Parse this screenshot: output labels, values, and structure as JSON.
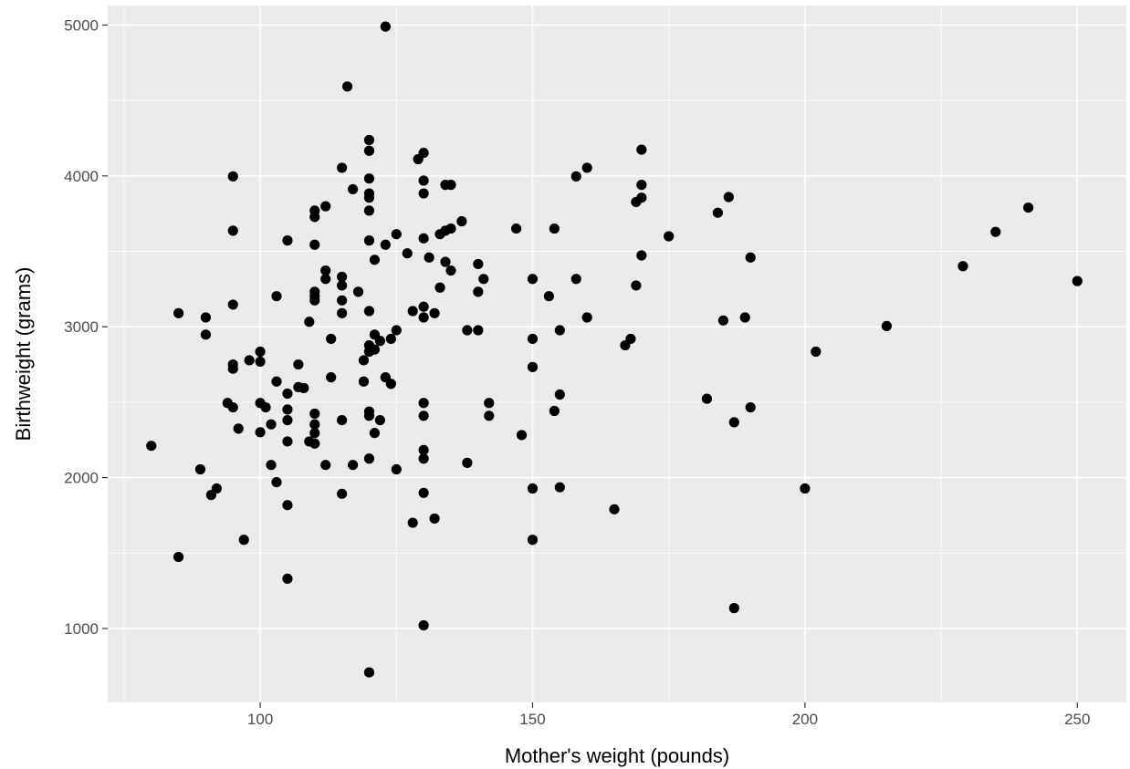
{
  "chart_data": {
    "type": "scatter",
    "title": "",
    "xlabel": "Mother's weight (pounds)",
    "ylabel": "Birthweight (grams)",
    "xlim": [
      72,
      259
    ],
    "ylim": [
      510,
      5130
    ],
    "x_ticks": [
      100,
      150,
      200,
      250
    ],
    "y_ticks": [
      1000,
      2000,
      3000,
      4000,
      5000
    ],
    "x_tick_labels": [
      "100",
      "150",
      "200",
      "250"
    ],
    "y_tick_labels": [
      "1000",
      "2000",
      "3000",
      "4000",
      "5000"
    ],
    "grid": true,
    "legend": "none",
    "colors": {
      "panel": "#ebebeb",
      "grid_major": "#ffffff",
      "point": "#000000",
      "tick_text": "#4d4d4d",
      "tick_mark": "#333333"
    },
    "points": [
      {
        "x": 123,
        "y": 4990
      },
      {
        "x": 116,
        "y": 4593
      },
      {
        "x": 120,
        "y": 4238
      },
      {
        "x": 120,
        "y": 4167
      },
      {
        "x": 129,
        "y": 4111
      },
      {
        "x": 130,
        "y": 4153
      },
      {
        "x": 170,
        "y": 4174
      },
      {
        "x": 115,
        "y": 4054
      },
      {
        "x": 160,
        "y": 4054
      },
      {
        "x": 95,
        "y": 3997
      },
      {
        "x": 158,
        "y": 3997
      },
      {
        "x": 120,
        "y": 3983
      },
      {
        "x": 130,
        "y": 3969
      },
      {
        "x": 170,
        "y": 3941
      },
      {
        "x": 134,
        "y": 3941
      },
      {
        "x": 135,
        "y": 3941
      },
      {
        "x": 117,
        "y": 3912
      },
      {
        "x": 120,
        "y": 3884
      },
      {
        "x": 130,
        "y": 3884
      },
      {
        "x": 120,
        "y": 3856
      },
      {
        "x": 170,
        "y": 3856
      },
      {
        "x": 186,
        "y": 3860
      },
      {
        "x": 169,
        "y": 3827
      },
      {
        "x": 112,
        "y": 3799
      },
      {
        "x": 241,
        "y": 3790
      },
      {
        "x": 110,
        "y": 3770
      },
      {
        "x": 120,
        "y": 3770
      },
      {
        "x": 184,
        "y": 3756
      },
      {
        "x": 110,
        "y": 3728
      },
      {
        "x": 137,
        "y": 3699
      },
      {
        "x": 95,
        "y": 3637
      },
      {
        "x": 147,
        "y": 3651
      },
      {
        "x": 154,
        "y": 3651
      },
      {
        "x": 135,
        "y": 3651
      },
      {
        "x": 134,
        "y": 3637
      },
      {
        "x": 133,
        "y": 3614
      },
      {
        "x": 235,
        "y": 3629
      },
      {
        "x": 175,
        "y": 3600
      },
      {
        "x": 125,
        "y": 3614
      },
      {
        "x": 105,
        "y": 3572
      },
      {
        "x": 120,
        "y": 3572
      },
      {
        "x": 130,
        "y": 3586
      },
      {
        "x": 110,
        "y": 3544
      },
      {
        "x": 123,
        "y": 3544
      },
      {
        "x": 127,
        "y": 3487
      },
      {
        "x": 170,
        "y": 3473
      },
      {
        "x": 131,
        "y": 3459
      },
      {
        "x": 121,
        "y": 3444
      },
      {
        "x": 190,
        "y": 3459
      },
      {
        "x": 134,
        "y": 3430
      },
      {
        "x": 140,
        "y": 3416
      },
      {
        "x": 229,
        "y": 3402
      },
      {
        "x": 112,
        "y": 3373
      },
      {
        "x": 135,
        "y": 3373
      },
      {
        "x": 115,
        "y": 3331
      },
      {
        "x": 112,
        "y": 3317
      },
      {
        "x": 150,
        "y": 3317
      },
      {
        "x": 158,
        "y": 3317
      },
      {
        "x": 141,
        "y": 3317
      },
      {
        "x": 250,
        "y": 3303
      },
      {
        "x": 115,
        "y": 3274
      },
      {
        "x": 169,
        "y": 3274
      },
      {
        "x": 133,
        "y": 3260
      },
      {
        "x": 110,
        "y": 3232
      },
      {
        "x": 118,
        "y": 3232
      },
      {
        "x": 140,
        "y": 3232
      },
      {
        "x": 110,
        "y": 3203
      },
      {
        "x": 103,
        "y": 3203
      },
      {
        "x": 153,
        "y": 3203
      },
      {
        "x": 110,
        "y": 3175
      },
      {
        "x": 115,
        "y": 3175
      },
      {
        "x": 95,
        "y": 3147
      },
      {
        "x": 130,
        "y": 3133
      },
      {
        "x": 128,
        "y": 3104
      },
      {
        "x": 120,
        "y": 3104
      },
      {
        "x": 132,
        "y": 3090
      },
      {
        "x": 115,
        "y": 3090
      },
      {
        "x": 85,
        "y": 3090
      },
      {
        "x": 90,
        "y": 3062
      },
      {
        "x": 130,
        "y": 3062
      },
      {
        "x": 160,
        "y": 3062
      },
      {
        "x": 189,
        "y": 3062
      },
      {
        "x": 185,
        "y": 3042
      },
      {
        "x": 109,
        "y": 3033
      },
      {
        "x": 215,
        "y": 3005
      },
      {
        "x": 138,
        "y": 2977
      },
      {
        "x": 140,
        "y": 2977
      },
      {
        "x": 155,
        "y": 2977
      },
      {
        "x": 125,
        "y": 2977
      },
      {
        "x": 121,
        "y": 2948
      },
      {
        "x": 90,
        "y": 2948
      },
      {
        "x": 113,
        "y": 2920
      },
      {
        "x": 124,
        "y": 2920
      },
      {
        "x": 150,
        "y": 2920
      },
      {
        "x": 168,
        "y": 2920
      },
      {
        "x": 122,
        "y": 2906
      },
      {
        "x": 120,
        "y": 2877
      },
      {
        "x": 167,
        "y": 2877
      },
      {
        "x": 121,
        "y": 2849
      },
      {
        "x": 120,
        "y": 2835
      },
      {
        "x": 100,
        "y": 2835
      },
      {
        "x": 202,
        "y": 2835
      },
      {
        "x": 119,
        "y": 2778
      },
      {
        "x": 98,
        "y": 2778
      },
      {
        "x": 100,
        "y": 2769
      },
      {
        "x": 95,
        "y": 2750
      },
      {
        "x": 107,
        "y": 2750
      },
      {
        "x": 95,
        "y": 2722
      },
      {
        "x": 150,
        "y": 2733
      },
      {
        "x": 113,
        "y": 2665
      },
      {
        "x": 123,
        "y": 2665
      },
      {
        "x": 119,
        "y": 2637
      },
      {
        "x": 103,
        "y": 2637
      },
      {
        "x": 124,
        "y": 2622
      },
      {
        "x": 107,
        "y": 2600
      },
      {
        "x": 108,
        "y": 2594
      },
      {
        "x": 105,
        "y": 2557
      },
      {
        "x": 155,
        "y": 2551
      },
      {
        "x": 182,
        "y": 2523
      },
      {
        "x": 94,
        "y": 2495
      },
      {
        "x": 100,
        "y": 2495
      },
      {
        "x": 130,
        "y": 2495
      },
      {
        "x": 142,
        "y": 2495
      },
      {
        "x": 95,
        "y": 2466
      },
      {
        "x": 101,
        "y": 2466
      },
      {
        "x": 190,
        "y": 2466
      },
      {
        "x": 105,
        "y": 2452
      },
      {
        "x": 154,
        "y": 2442
      },
      {
        "x": 120,
        "y": 2438
      },
      {
        "x": 110,
        "y": 2424
      },
      {
        "x": 120,
        "y": 2410
      },
      {
        "x": 130,
        "y": 2410
      },
      {
        "x": 142,
        "y": 2410
      },
      {
        "x": 105,
        "y": 2381
      },
      {
        "x": 115,
        "y": 2381
      },
      {
        "x": 122,
        "y": 2381
      },
      {
        "x": 187,
        "y": 2367
      },
      {
        "x": 102,
        "y": 2353
      },
      {
        "x": 110,
        "y": 2353
      },
      {
        "x": 96,
        "y": 2325
      },
      {
        "x": 121,
        "y": 2296
      },
      {
        "x": 100,
        "y": 2301
      },
      {
        "x": 110,
        "y": 2296
      },
      {
        "x": 148,
        "y": 2282
      },
      {
        "x": 109,
        "y": 2240
      },
      {
        "x": 110,
        "y": 2226
      },
      {
        "x": 105,
        "y": 2240
      },
      {
        "x": 80,
        "y": 2211
      },
      {
        "x": 130,
        "y": 2183
      },
      {
        "x": 120,
        "y": 2126
      },
      {
        "x": 130,
        "y": 2126
      },
      {
        "x": 138,
        "y": 2098
      },
      {
        "x": 102,
        "y": 2084
      },
      {
        "x": 112,
        "y": 2084
      },
      {
        "x": 117,
        "y": 2084
      },
      {
        "x": 89,
        "y": 2055
      },
      {
        "x": 125,
        "y": 2055
      },
      {
        "x": 103,
        "y": 1970
      },
      {
        "x": 155,
        "y": 1936
      },
      {
        "x": 150,
        "y": 1928
      },
      {
        "x": 200,
        "y": 1928
      },
      {
        "x": 92,
        "y": 1928
      },
      {
        "x": 91,
        "y": 1885
      },
      {
        "x": 115,
        "y": 1893
      },
      {
        "x": 130,
        "y": 1899
      },
      {
        "x": 105,
        "y": 1818
      },
      {
        "x": 165,
        "y": 1790
      },
      {
        "x": 132,
        "y": 1729
      },
      {
        "x": 128,
        "y": 1701
      },
      {
        "x": 97,
        "y": 1588
      },
      {
        "x": 150,
        "y": 1588
      },
      {
        "x": 85,
        "y": 1474
      },
      {
        "x": 105,
        "y": 1330
      },
      {
        "x": 187,
        "y": 1135
      },
      {
        "x": 130,
        "y": 1021
      },
      {
        "x": 120,
        "y": 709
      }
    ]
  }
}
